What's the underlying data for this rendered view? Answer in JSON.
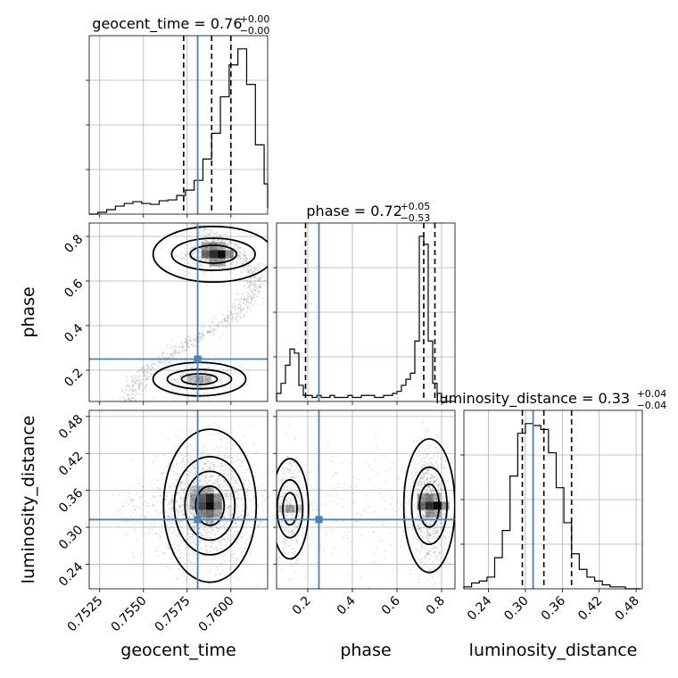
{
  "chart_data": {
    "type": "corner",
    "parameters": [
      {
        "name": "geocent_time",
        "label": "geocent_time",
        "range": [
          0.7519,
          0.7621
        ],
        "ticks": [
          0.7525,
          0.755,
          0.7575,
          0.76
        ],
        "tick_labels": [
          "0.7525",
          "0.7550",
          "0.7575",
          "0.7600"
        ],
        "truth": 0.7581,
        "quantiles": [
          0.7573,
          0.7589,
          0.76
        ],
        "title": {
          "main": "geocent_time = 0.76",
          "sup": "+0.00",
          "sub": "−0.00"
        },
        "hist": {
          "edges_start": 0.7519,
          "bin_width": 0.0005,
          "counts": [
            0,
            2,
            5,
            9,
            12,
            14,
            12,
            11,
            15,
            16,
            21,
            27,
            38,
            62,
            91,
            132,
            168,
            186,
            146,
            78,
            34,
            7
          ]
        }
      },
      {
        "name": "phase",
        "label": "phase",
        "range": [
          0.06,
          0.86
        ],
        "ticks": [
          0.2,
          0.4,
          0.6,
          0.8
        ],
        "tick_labels": [
          "0.2",
          "0.4",
          "0.6",
          "0.8"
        ],
        "truth": 0.25,
        "quantiles": [
          0.19,
          0.72,
          0.77
        ],
        "title": {
          "main": "phase = 0.72",
          "sup": "+0.05",
          "sub": "−0.53"
        },
        "hist": {
          "edges_start": 0.06,
          "bin_width": 0.02,
          "counts": [
            4,
            9,
            18,
            26,
            24,
            8,
            3,
            3,
            2,
            3,
            2,
            2,
            3,
            2,
            2,
            2,
            3,
            2,
            2,
            3,
            3,
            3,
            2,
            2,
            3,
            3,
            4,
            5,
            8,
            11,
            14,
            30,
            82,
            78,
            30,
            9,
            4,
            2,
            0,
            0
          ]
        }
      },
      {
        "name": "luminosity_distance",
        "label": "luminosity_distance",
        "range": [
          0.2,
          0.49
        ],
        "ticks": [
          0.24,
          0.3,
          0.36,
          0.42,
          0.48
        ],
        "tick_labels": [
          "0.24",
          "0.30",
          "0.36",
          "0.42",
          "0.48"
        ],
        "truth": 0.3125,
        "quantiles": [
          0.295,
          0.33,
          0.375
        ],
        "title": {
          "main": "luminosity_distance = 0.33",
          "sup": "+0.04",
          "sub": "−0.04"
        },
        "hist": {
          "edges_start": 0.2,
          "bin_width": 0.0125,
          "counts": [
            1,
            3,
            4,
            6,
            16,
            30,
            58,
            80,
            85,
            84,
            82,
            70,
            52,
            34,
            18,
            10,
            6,
            4,
            2,
            1,
            1,
            0,
            0
          ]
        }
      }
    ],
    "pairs": [
      {
        "x": "geocent_time",
        "y": "phase",
        "truth_point": [
          0.7581,
          0.25
        ],
        "density_peaks": [
          [
            0.759,
            0.72
          ],
          [
            0.7582,
            0.16
          ]
        ],
        "contour_levels": 3
      },
      {
        "x": "geocent_time",
        "y": "luminosity_distance",
        "truth_point": [
          0.7581,
          0.3125
        ],
        "density_peaks": [
          [
            0.7588,
            0.335
          ]
        ],
        "contour_levels": 4
      },
      {
        "x": "phase",
        "y": "luminosity_distance",
        "truth_point": [
          0.25,
          0.3125
        ],
        "density_peaks": [
          [
            0.745,
            0.335
          ],
          [
            0.12,
            0.33
          ]
        ],
        "contour_levels": 3
      }
    ],
    "colors": {
      "truth": "#4682b4",
      "hist": "#000000",
      "contour": "#000000",
      "density": "#000000",
      "scatter": "#808080"
    },
    "grid": true
  }
}
